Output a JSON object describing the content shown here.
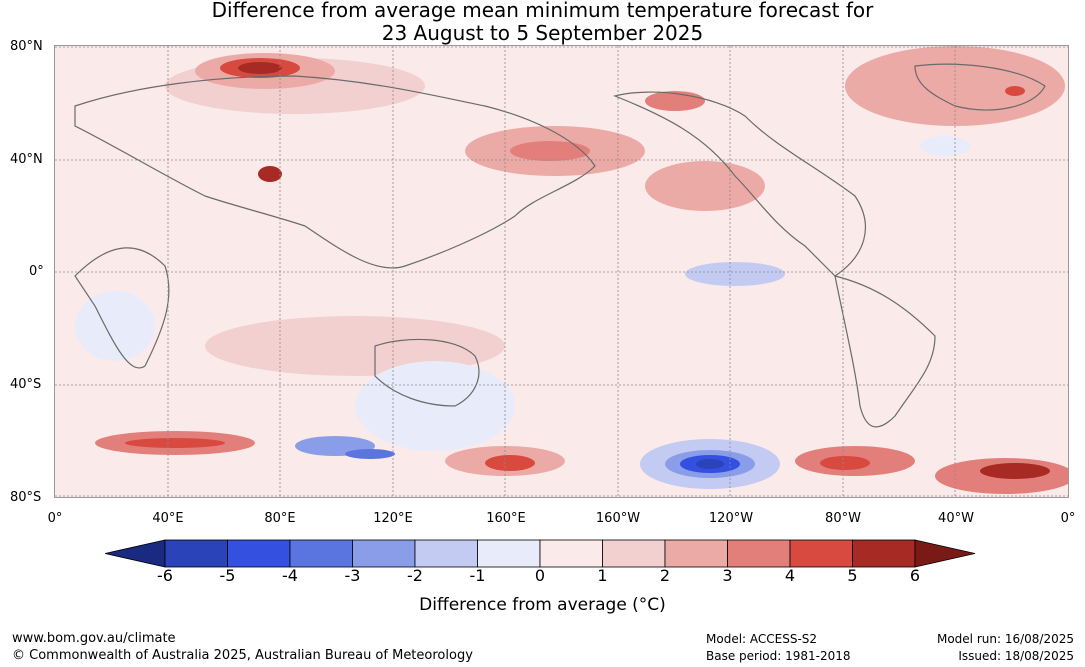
{
  "title_line1": "Difference from average mean minimum temperature forecast for",
  "title_line2": "23 August to 5 September 2025",
  "map": {
    "lat_labels": [
      "80°N",
      "40°N",
      "0°",
      "40°S",
      "80°S"
    ],
    "lon_labels": [
      "0°",
      "40°E",
      "80°E",
      "120°E",
      "160°E",
      "160°W",
      "120°W",
      "80°W",
      "40°W",
      "0°"
    ],
    "gridline_color": "#8a8a8a",
    "coastline_color": "#6a6a6a",
    "background_color": "#fbeaea"
  },
  "colorbar": {
    "ticks": [
      "-6",
      "-5",
      "-4",
      "-3",
      "-2",
      "-1",
      "0",
      "1",
      "2",
      "3",
      "4",
      "5",
      "6"
    ],
    "colors": [
      "#1a2a80",
      "#2a43b8",
      "#3450e0",
      "#5b75e0",
      "#8a9de8",
      "#c3cbf2",
      "#e8ecfa",
      "#fbeaea",
      "#f3d0d0",
      "#ecaaa6",
      "#e37f7a",
      "#d84a40",
      "#a82a24",
      "#7a1a16"
    ],
    "label": "Difference from average (°C)"
  },
  "footer": {
    "website": "www.bom.gov.au/climate",
    "copyright": "© Commonwealth of Australia 2025, Australian Bureau of Meteorology",
    "model": "Model: ACCESS-S2",
    "base_period": "Base period: 1981-2018",
    "model_run": "Model run: 16/08/2025",
    "issued": "Issued: 18/08/2025"
  }
}
